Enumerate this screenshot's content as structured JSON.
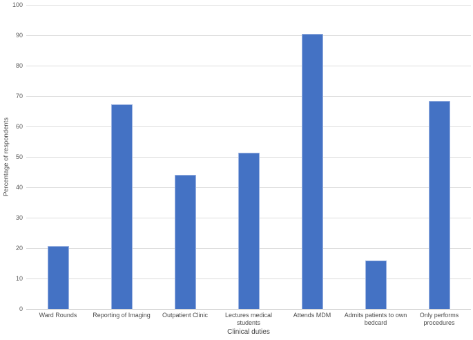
{
  "chart_data": {
    "type": "bar",
    "title": "",
    "xlabel": "Clinical duties",
    "ylabel": "Percentage of respondents",
    "categories": [
      "Ward Rounds",
      "Reporting of Imaging",
      "Outpatient Clinic",
      "Lectures medical\nstudents",
      "Attends MDM",
      "Admits patients to own\nbedcard",
      "Only performs\nprocedures"
    ],
    "values": [
      20.7,
      67.3,
      44.0,
      51.3,
      90.4,
      15.9,
      68.4
    ],
    "ylim": [
      0,
      100
    ],
    "yticks": [
      0,
      10,
      20,
      30,
      40,
      50,
      60,
      70,
      80,
      90,
      100
    ],
    "grid": "horizontal",
    "legend": "none",
    "colors": {
      "bar_fill": "#4472c4",
      "bar_edge": "#9db4e2",
      "gridline": "#dcdcdc",
      "axis_line": "#c6c6c6",
      "tick_text": "#595959",
      "label_text": "#4a4a4a"
    }
  }
}
